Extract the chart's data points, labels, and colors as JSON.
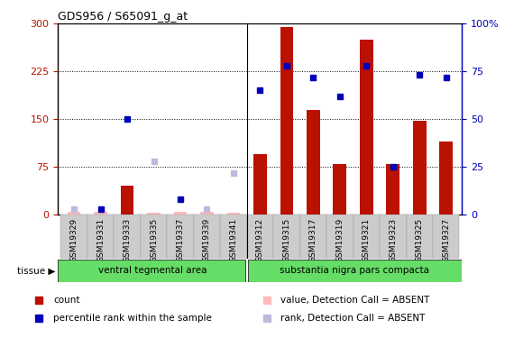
{
  "title": "GDS956 / S65091_g_at",
  "categories": [
    "GSM19329",
    "GSM19331",
    "GSM19333",
    "GSM19335",
    "GSM19337",
    "GSM19339",
    "GSM19341",
    "GSM19312",
    "GSM19315",
    "GSM19317",
    "GSM19319",
    "GSM19321",
    "GSM19323",
    "GSM19325",
    "GSM19327"
  ],
  "group1_label": "ventral tegmental area",
  "group2_label": "substantia nigra pars compacta",
  "group1_count": 7,
  "group2_count": 8,
  "bar_values": [
    5,
    5,
    45,
    3,
    5,
    5,
    3,
    95,
    295,
    165,
    80,
    275,
    80,
    148,
    115
  ],
  "bar_absent": [
    true,
    true,
    false,
    true,
    true,
    true,
    true,
    false,
    false,
    false,
    false,
    false,
    false,
    false,
    false
  ],
  "rank_pct": [
    3,
    3,
    50,
    28,
    8,
    3,
    22,
    65,
    78,
    72,
    62,
    78,
    25,
    73,
    72
  ],
  "rank_absent": [
    true,
    false,
    false,
    true,
    false,
    true,
    true,
    false,
    false,
    false,
    false,
    false,
    false,
    false,
    false
  ],
  "ylim_left": [
    0,
    300
  ],
  "ylim_right": [
    0,
    100
  ],
  "yticks_left": [
    0,
    75,
    150,
    225,
    300
  ],
  "yticks_right_vals": [
    0,
    25,
    50,
    75,
    100
  ],
  "yticks_right_labels": [
    "0",
    "25",
    "50",
    "75",
    "100%"
  ],
  "bar_color": "#bb1100",
  "bar_absent_color": "#ffbbbb",
  "rank_color": "#0000bb",
  "rank_absent_color": "#bbbbdd",
  "tissue_bg": "#66dd66",
  "tissue_bg2": "#55cc55",
  "xticklabel_bg": "#cccccc",
  "group1_separator": 6.5,
  "legend_items": [
    "count",
    "percentile rank within the sample",
    "value, Detection Call = ABSENT",
    "rank, Detection Call = ABSENT"
  ]
}
